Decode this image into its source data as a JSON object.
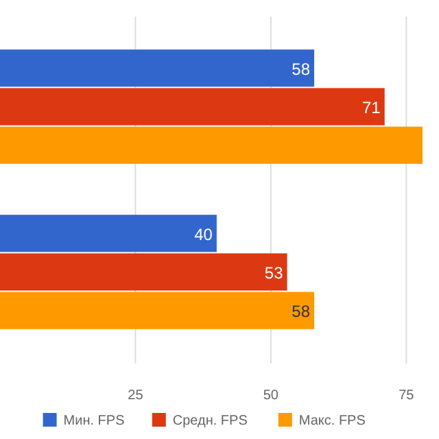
{
  "chart_data": {
    "type": "bar",
    "orientation": "horizontal",
    "categories": [
      null,
      null
    ],
    "series": [
      {
        "name": "Мин. FPS",
        "color": "#3366cc",
        "values": [
          58,
          40
        ],
        "value_labels": [
          "58",
          "40"
        ]
      },
      {
        "name": "Средн. FPS",
        "color": "#dc3912",
        "values": [
          71,
          53
        ],
        "value_labels": [
          "71",
          "53"
        ]
      },
      {
        "name": "Макс. FPS",
        "color": "#ff9900",
        "values": [
          78,
          58
        ],
        "value_labels": [
          null,
          "58"
        ]
      }
    ],
    "xlim": [
      0,
      78
    ],
    "xticks": [
      25,
      50,
      75
    ],
    "grid": "x",
    "legend": "bottom"
  }
}
